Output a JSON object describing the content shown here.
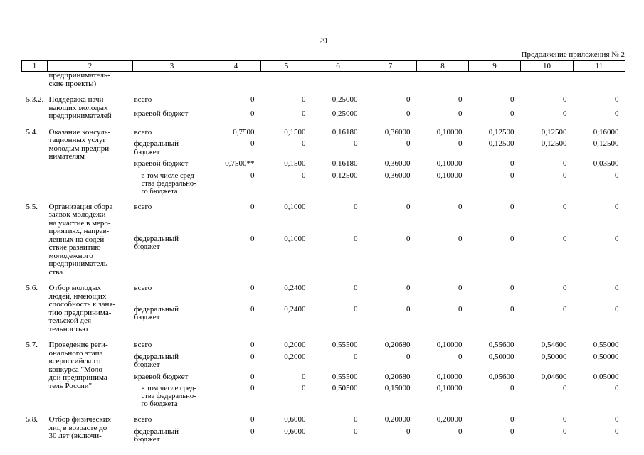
{
  "page": {
    "number": "29",
    "continuation_note": "Продолжение приложения № 2"
  },
  "table": {
    "column_numbers": [
      "1",
      "2",
      "3",
      "4",
      "5",
      "6",
      "7",
      "8",
      "9",
      "10",
      "11"
    ],
    "groups": [
      {
        "num": "",
        "name": "предприниматель-\nские проекты)",
        "subrows": []
      },
      {
        "num": "5.3.2.",
        "name": "Поддержка начи-\nнающих молодых\nпредпринимателей",
        "subrows": [
          {
            "label": "всего",
            "indent": false,
            "values": [
              "0",
              "0",
              "0,25000",
              "0",
              "0",
              "0",
              "0",
              "0"
            ]
          },
          {
            "label": "краевой бюджет",
            "indent": false,
            "values": [
              "0",
              "0",
              "0,25000",
              "0",
              "0",
              "0",
              "0",
              "0"
            ]
          }
        ]
      },
      {
        "num": "5.4.",
        "name": "Оказание консуль-\nтационных услуг\nмолодым предпри-\nнимателям",
        "subrows": [
          {
            "label": "всего",
            "indent": false,
            "values": [
              "0,7500",
              "0,1500",
              "0,16180",
              "0,36000",
              "0,10000",
              "0,12500",
              "0,12500",
              "0,16000"
            ]
          },
          {
            "label": "федеральный\nбюджет",
            "indent": false,
            "values": [
              "0",
              "0",
              "0",
              "0",
              "0",
              "0,12500",
              "0,12500",
              "0,12500"
            ]
          },
          {
            "label": "краевой бюджет",
            "indent": false,
            "values": [
              "0,7500**",
              "0,1500",
              "0,16180",
              "0,36000",
              "0,10000",
              "0",
              "0",
              "0,03500"
            ]
          },
          {
            "label": "в том числе сред-\nства федерально-\nго бюджета",
            "indent": true,
            "values": [
              "0",
              "0",
              "0,12500",
              "0,36000",
              "0,10000",
              "0",
              "0",
              "0"
            ]
          }
        ]
      },
      {
        "num": "5.5.",
        "name": "Организация сбора\nзаявок молодежи\nна участие в меро-\nприятиях, направ-\nленных на содей-\nствие развитию\nмолодежного\nпредприниматель-\nства",
        "subrows": [
          {
            "label": "всего",
            "indent": false,
            "values": [
              "0",
              "0,1000",
              "0",
              "0",
              "0",
              "0",
              "0",
              "0"
            ]
          },
          {
            "label": "федеральный\nбюджет",
            "indent": false,
            "values": [
              "0",
              "0,1000",
              "0",
              "0",
              "0",
              "0",
              "0",
              "0"
            ]
          }
        ]
      },
      {
        "num": "5.6.",
        "name": "Отбор молодых\nлюдей, имеющих\nспособность к заня-\nтию предпринима-\nтельской дея-\nтельностью",
        "subrows": [
          {
            "label": "всего",
            "indent": false,
            "values": [
              "0",
              "0,2400",
              "0",
              "0",
              "0",
              "0",
              "0",
              "0"
            ]
          },
          {
            "label": "федеральный\nбюджет",
            "indent": false,
            "values": [
              "0",
              "0,2400",
              "0",
              "0",
              "0",
              "0",
              "0",
              "0"
            ]
          }
        ]
      },
      {
        "num": "5.7.",
        "name": "Проведение реги-\nонального этапа\nвсероссийского\nконкурса \"Моло-\nдой предпринима-\nтель России\"",
        "subrows": [
          {
            "label": "всего",
            "indent": false,
            "values": [
              "0",
              "0,2000",
              "0,55500",
              "0,20680",
              "0,10000",
              "0,55600",
              "0,54600",
              "0,55000"
            ]
          },
          {
            "label": "федеральный\nбюджет",
            "indent": false,
            "values": [
              "0",
              "0,2000",
              "0",
              "0",
              "0",
              "0,50000",
              "0,50000",
              "0,50000"
            ]
          },
          {
            "label": "краевой бюджет",
            "indent": false,
            "values": [
              "0",
              "0",
              "0,55500",
              "0,20680",
              "0,10000",
              "0,05600",
              "0,04600",
              "0,05000"
            ]
          },
          {
            "label": "в том числе сред-\nства федерально-\nго бюджета",
            "indent": true,
            "values": [
              "0",
              "0",
              "0,50500",
              "0,15000",
              "0,10000",
              "0",
              "0",
              "0"
            ]
          }
        ]
      },
      {
        "num": "5.8.",
        "name": "Отбор физических\nлиц в возрасте до\n30 лет (включи-",
        "subrows": [
          {
            "label": "всего",
            "indent": false,
            "values": [
              "0",
              "0,6000",
              "0",
              "0,20000",
              "0,20000",
              "0",
              "0",
              "0"
            ]
          },
          {
            "label": "федеральный\nбюджет",
            "indent": false,
            "values": [
              "0",
              "0,6000",
              "0",
              "0",
              "0",
              "0",
              "0",
              "0"
            ]
          }
        ]
      }
    ]
  }
}
